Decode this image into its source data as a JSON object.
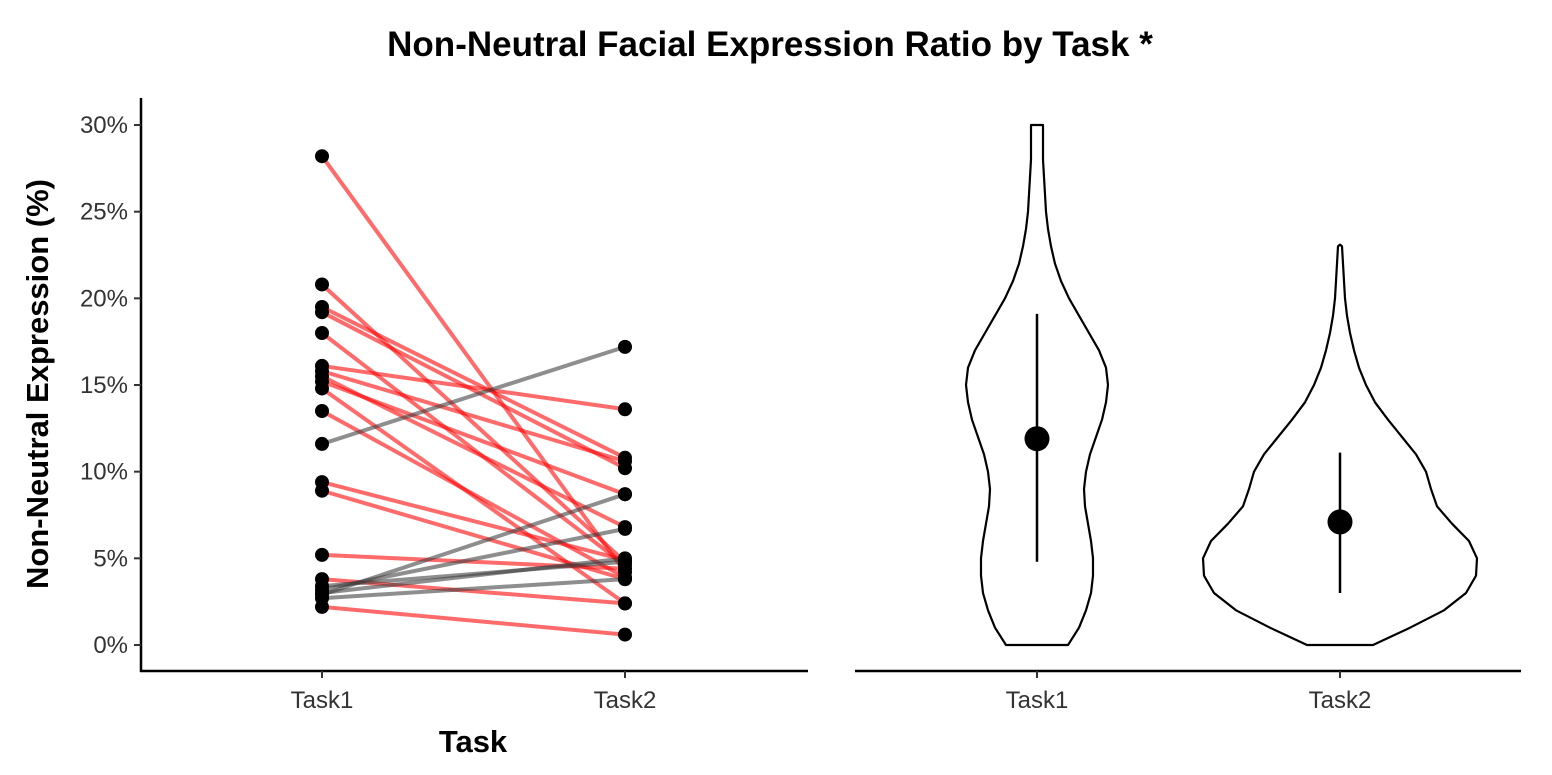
{
  "chart_data": [
    {
      "type": "line",
      "title": "Non-Neutral Facial Expression Ratio by Task *",
      "xlabel": "Task",
      "ylabel": "Non-Neutral Expression (%)",
      "categories": [
        "Task1",
        "Task2"
      ],
      "ylim": [
        0,
        30
      ],
      "yticks": [
        0,
        5,
        10,
        15,
        20,
        25,
        30
      ],
      "ytick_labels": [
        "0%",
        "5%",
        "10%",
        "15%",
        "20%",
        "25%",
        "30%"
      ],
      "grid": false,
      "colors": {
        "decrease": "#ff0000",
        "increase": "#3c3c3c",
        "point": "#000000"
      },
      "series": [
        {
          "values": [
            28.2,
            4.2
          ],
          "direction": "decrease"
        },
        {
          "values": [
            20.8,
            4.8
          ],
          "direction": "decrease"
        },
        {
          "values": [
            19.5,
            10.8
          ],
          "direction": "decrease"
        },
        {
          "values": [
            19.2,
            10.2
          ],
          "direction": "decrease"
        },
        {
          "values": [
            18.0,
            4.6
          ],
          "direction": "decrease"
        },
        {
          "values": [
            16.1,
            13.6
          ],
          "direction": "decrease"
        },
        {
          "values": [
            15.8,
            10.6
          ],
          "direction": "decrease"
        },
        {
          "values": [
            15.5,
            6.8
          ],
          "direction": "decrease"
        },
        {
          "values": [
            15.2,
            8.7
          ],
          "direction": "decrease"
        },
        {
          "values": [
            14.8,
            2.4
          ],
          "direction": "decrease"
        },
        {
          "values": [
            13.5,
            3.9
          ],
          "direction": "decrease"
        },
        {
          "values": [
            9.4,
            4.9
          ],
          "direction": "decrease"
        },
        {
          "values": [
            8.9,
            3.8
          ],
          "direction": "decrease"
        },
        {
          "values": [
            5.2,
            4.4
          ],
          "direction": "decrease"
        },
        {
          "values": [
            3.8,
            2.4
          ],
          "direction": "decrease"
        },
        {
          "values": [
            2.2,
            0.6
          ],
          "direction": "decrease"
        },
        {
          "values": [
            11.6,
            17.2
          ],
          "direction": "increase"
        },
        {
          "values": [
            2.9,
            8.7
          ],
          "direction": "increase"
        },
        {
          "values": [
            3.2,
            6.7
          ],
          "direction": "increase"
        },
        {
          "values": [
            3.0,
            5.0
          ],
          "direction": "increase"
        },
        {
          "values": [
            2.7,
            3.8
          ],
          "direction": "increase"
        },
        {
          "values": [
            3.4,
            4.8
          ],
          "direction": "increase"
        }
      ]
    },
    {
      "type": "violin",
      "categories": [
        "Task1",
        "Task2"
      ],
      "ylim": [
        0,
        30
      ],
      "violins": [
        {
          "category": "Task1",
          "min": 0,
          "max": 30,
          "mean": 11.9,
          "range_low": 4.8,
          "range_high": 19.1
        },
        {
          "category": "Task2",
          "min": 0,
          "max": 23.1,
          "mean": 7.1,
          "range_low": 3.0,
          "range_high": 11.1
        }
      ]
    }
  ]
}
